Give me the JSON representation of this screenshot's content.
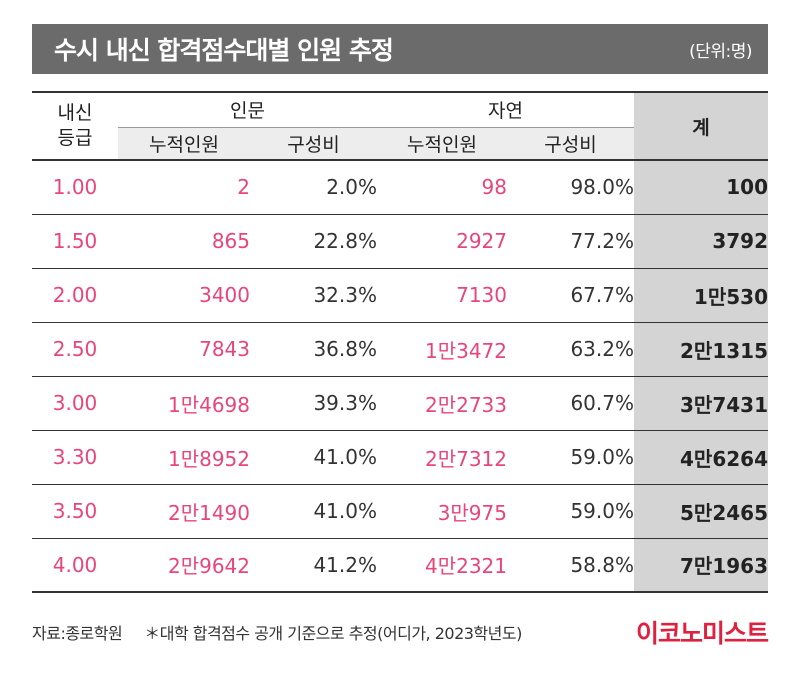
{
  "title": "수시 내신 합격점수대별 인원 추정",
  "unit": "(단위:명)",
  "headers": {
    "grade_line1": "내신",
    "grade_line2": "등급",
    "humanities": "인문",
    "science": "자연",
    "total": "계",
    "cumulative": "누적인원",
    "ratio": "구성비"
  },
  "rows": [
    {
      "grade": "1.00",
      "hum_count": "2",
      "hum_ratio": "2.0%",
      "sci_count": "98",
      "sci_ratio": "98.0%",
      "total": "100"
    },
    {
      "grade": "1.50",
      "hum_count": "865",
      "hum_ratio": "22.8%",
      "sci_count": "2927",
      "sci_ratio": "77.2%",
      "total": "3792"
    },
    {
      "grade": "2.00",
      "hum_count": "3400",
      "hum_ratio": "32.3%",
      "sci_count": "7130",
      "sci_ratio": "67.7%",
      "total": "1만530"
    },
    {
      "grade": "2.50",
      "hum_count": "7843",
      "hum_ratio": "36.8%",
      "sci_count": "1만3472",
      "sci_ratio": "63.2%",
      "total": "2만1315"
    },
    {
      "grade": "3.00",
      "hum_count": "1만4698",
      "hum_ratio": "39.3%",
      "sci_count": "2만2733",
      "sci_ratio": "60.7%",
      "total": "3만7431"
    },
    {
      "grade": "3.30",
      "hum_count": "1만8952",
      "hum_ratio": "41.0%",
      "sci_count": "2만7312",
      "sci_ratio": "59.0%",
      "total": "4만6264"
    },
    {
      "grade": "3.50",
      "hum_count": "2만1490",
      "hum_ratio": "41.0%",
      "sci_count": "3만975",
      "sci_ratio": "59.0%",
      "total": "5만2465"
    },
    {
      "grade": "4.00",
      "hum_count": "2만9642",
      "hum_ratio": "41.2%",
      "sci_count": "4만2321",
      "sci_ratio": "58.8%",
      "total": "7만1963"
    }
  ],
  "footer": {
    "source": "자료:종로학원",
    "note": "＊대학 합격점수 공개 기준으로 추정(어디가, 2023학년도)",
    "logo": "이코노미스트"
  },
  "colors": {
    "accent": "#e8457a",
    "title_bg": "#6b6b6b",
    "total_bg": "#d4d4d4",
    "logo": "#e0203f"
  }
}
